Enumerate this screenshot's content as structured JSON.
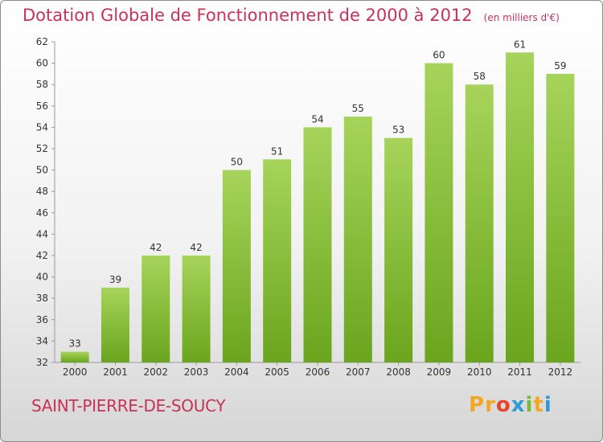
{
  "title": "Dotation Globale de Fonctionnement de 2000 à 2012",
  "unit": "(en milliers d'€)",
  "commune": "SAINT-PIERRE-DE-SOUCY",
  "logo": [
    "P",
    "r",
    "o",
    "x",
    "i",
    "t",
    "i"
  ],
  "colors": {
    "title": "#c8325a",
    "bar_light": "#a6d45a",
    "bar_dark": "#6aa51e",
    "logo": [
      "#f5a623",
      "#f5a623",
      "#e8452c",
      "#2f9ad6",
      "#7cb83a",
      "#f5a623",
      "#2f9ad6"
    ]
  },
  "chart_data": {
    "type": "bar",
    "categories": [
      "2000",
      "2001",
      "2002",
      "2003",
      "2004",
      "2005",
      "2006",
      "2007",
      "2008",
      "2009",
      "2010",
      "2011",
      "2012"
    ],
    "values": [
      33,
      39,
      42,
      42,
      50,
      51,
      54,
      55,
      53,
      60,
      58,
      61,
      59
    ],
    "ylim": [
      32,
      62
    ],
    "yticks": [
      32,
      34,
      36,
      38,
      40,
      42,
      44,
      46,
      48,
      50,
      52,
      54,
      56,
      58,
      60,
      62
    ],
    "grid": false,
    "data_labels": true
  }
}
